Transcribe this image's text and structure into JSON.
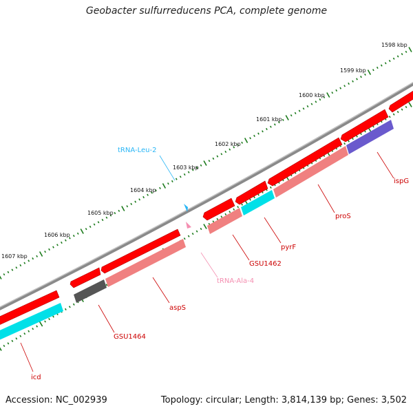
{
  "title": "Geobacter sulfurreducens PCA, complete genome",
  "footer": {
    "accession": "Accession: NC_002939",
    "topology": "Topology: circular; Length: 3,814,139 bp; Genes: 3,502"
  },
  "colors": {
    "backbone": "#8a8a8a",
    "gene_strand": "#ff0000",
    "cds_salmon": "#f08080",
    "cds_dark": "#555555",
    "cds_cyan": "#00e0e8",
    "cds_blue": "#6a5acd",
    "trna_leu": "#29b6f6",
    "trna_ala": "#f48fb1",
    "tick": "#1a7a1a",
    "label_red": "#cc0000",
    "label_cyan": "#29b6f6",
    "label_pink": "#f48fb1"
  },
  "scale_ticks": [
    {
      "label": "1598 kbp"
    },
    {
      "label": "1599 kbp"
    },
    {
      "label": "1600 kbp"
    },
    {
      "label": "1601 kbp"
    },
    {
      "label": "1602 kbp"
    },
    {
      "label": "1603 kbp"
    },
    {
      "label": "1604 kbp"
    },
    {
      "label": "1605 kbp"
    },
    {
      "label": "1606 kbp"
    },
    {
      "label": "1607 kbp"
    }
  ],
  "genes": [
    {
      "name": "icd"
    },
    {
      "name": "GSU1464"
    },
    {
      "name": "aspS"
    },
    {
      "name": "tRNA-Ala-4"
    },
    {
      "name": "GSU1462"
    },
    {
      "name": "pyrF"
    },
    {
      "name": "proS"
    },
    {
      "name": "ispG"
    },
    {
      "name": "tRNA-Leu-2"
    }
  ]
}
